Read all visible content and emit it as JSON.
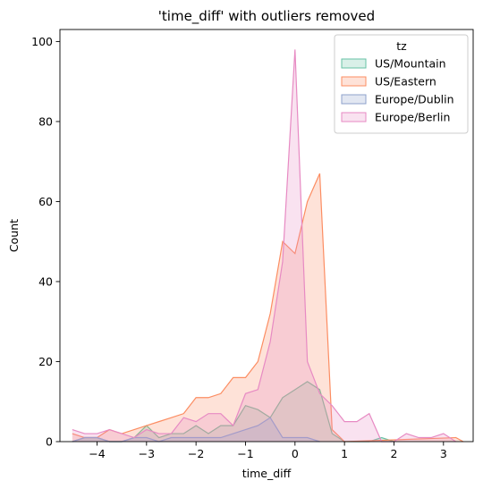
{
  "chart_data": {
    "type": "area",
    "title": "'time_diff' with outliers removed",
    "xlabel": "time_diff",
    "ylabel": "Count",
    "xlim": [
      -4.75,
      3.6
    ],
    "ylim": [
      0,
      103
    ],
    "xticks": [
      -4,
      -3,
      -2,
      -1,
      0,
      1,
      2,
      3
    ],
    "yticks": [
      0,
      20,
      40,
      60,
      80,
      100
    ],
    "grid": false,
    "legend": {
      "title": "tz",
      "placement": "top-right"
    },
    "series": [
      {
        "name": "US/Mountain",
        "color": "#66c2a5",
        "x": [
          -4.5,
          -4.25,
          -4.0,
          -3.75,
          -3.5,
          -3.25,
          -3.0,
          -2.75,
          -2.5,
          -2.25,
          -2.0,
          -1.75,
          -1.5,
          -1.25,
          -1.0,
          -0.75,
          -0.5,
          -0.25,
          0.0,
          0.25,
          0.5,
          0.75,
          1.0,
          1.25,
          1.5,
          1.75,
          2.0
        ],
        "y": [
          0,
          1,
          1,
          0,
          0,
          1,
          4,
          1,
          2,
          2,
          4,
          2,
          4,
          4,
          9,
          8,
          6,
          11,
          13,
          15,
          13,
          2,
          0,
          0,
          0,
          1,
          0
        ]
      },
      {
        "name": "US/Eastern",
        "color": "#fc8d62",
        "x": [
          -4.5,
          -4.25,
          -4.0,
          -3.75,
          -3.5,
          -3.25,
          -3.0,
          -2.75,
          -2.5,
          -2.25,
          -2.0,
          -1.75,
          -1.5,
          -1.25,
          -1.0,
          -0.75,
          -0.5,
          -0.25,
          0.0,
          0.25,
          0.5,
          0.75,
          1.0,
          3.25,
          3.4
        ],
        "y": [
          2,
          1,
          1,
          3,
          2,
          3,
          4,
          5,
          6,
          7,
          11,
          11,
          12,
          16,
          16,
          20,
          32,
          50,
          47,
          60,
          67,
          3,
          0,
          1,
          0
        ]
      },
      {
        "name": "Europe/Dublin",
        "color": "#8da0cb",
        "x": [
          -4.5,
          -4.25,
          -4.0,
          -3.75,
          -3.5,
          -3.25,
          -3.0,
          -2.75,
          -2.5,
          -2.25,
          -2.0,
          -1.75,
          -1.5,
          -1.25,
          -1.0,
          -0.75,
          -0.5,
          -0.25,
          0.0,
          0.25,
          0.5
        ],
        "y": [
          0,
          1,
          1,
          0,
          0,
          1,
          1,
          0,
          1,
          1,
          1,
          1,
          1,
          2,
          3,
          4,
          6,
          1,
          1,
          1,
          0
        ]
      },
      {
        "name": "Europe/Berlin",
        "color": "#e78ac3",
        "x": [
          -4.5,
          -4.25,
          -4.0,
          -3.75,
          -3.5,
          -3.25,
          -3.0,
          -2.75,
          -2.5,
          -2.25,
          -2.0,
          -1.75,
          -1.5,
          -1.25,
          -1.0,
          -0.75,
          -0.5,
          -0.25,
          0.0,
          0.25,
          0.5,
          0.75,
          1.0,
          1.25,
          1.5,
          1.75,
          2.0,
          2.25,
          2.5,
          2.75,
          3.0,
          3.25
        ],
        "y": [
          3,
          2,
          2,
          3,
          2,
          1,
          3,
          2,
          2,
          6,
          5,
          7,
          7,
          4,
          12,
          13,
          25,
          45,
          98,
          20,
          12,
          9,
          5,
          5,
          7,
          0,
          0,
          2,
          1,
          1,
          2,
          0
        ]
      }
    ]
  }
}
